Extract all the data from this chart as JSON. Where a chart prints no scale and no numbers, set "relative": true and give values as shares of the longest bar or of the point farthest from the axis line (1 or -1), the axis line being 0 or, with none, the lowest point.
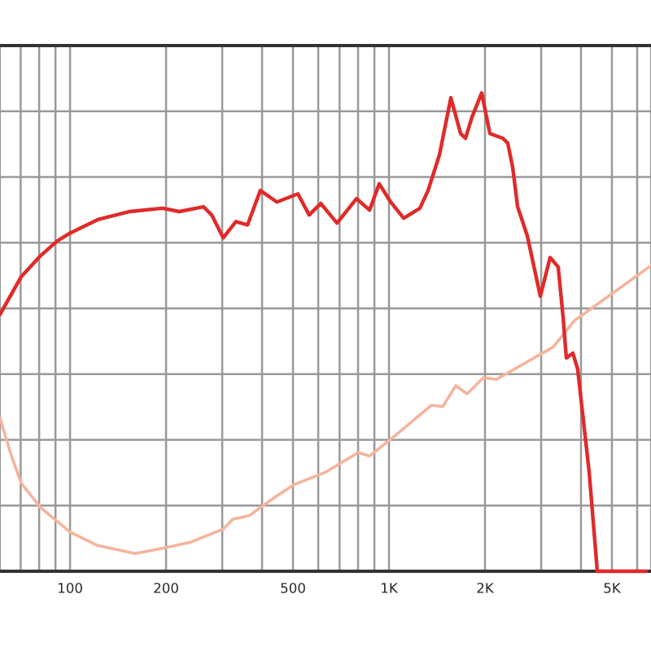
{
  "chart_data": {
    "type": "line",
    "relative": true,
    "log": "x",
    "grid": true,
    "tick_labels": "x",
    "marker": "none",
    "line_style": "solid",
    "legend": false,
    "xlim": [
      60.3,
      6630
    ],
    "xticks": [
      {
        "value": 70,
        "label": null
      },
      {
        "value": 80,
        "label": null
      },
      {
        "value": 90,
        "label": null
      },
      100,
      200,
      {
        "value": 300,
        "label": null
      },
      {
        "value": 400,
        "label": null
      },
      500,
      {
        "value": 600,
        "label": null
      },
      {
        "value": 700,
        "label": null
      },
      {
        "value": 800,
        "label": null
      },
      {
        "value": 900,
        "label": null
      },
      {
        "value": 1000,
        "label": "1K"
      },
      {
        "value": 2000,
        "label": "2K"
      },
      {
        "value": 3000,
        "label": null
      },
      {
        "value": 4000,
        "label": null
      },
      {
        "value": 5000,
        "label": "5K"
      },
      {
        "value": 6000,
        "label": null
      }
    ],
    "series": [
      {
        "color": "#f5b49c",
        "x": [
          60.3,
          65.5,
          70.3,
          80.9,
          100,
          122,
          160,
          195,
          239,
          302,
          324,
          364,
          429,
          500,
          632,
          800,
          869,
          1012,
          1358,
          1474,
          1619,
          1758,
          1977,
          2172,
          3275,
          3816,
          6630
        ],
        "values": [
          0.32,
          0.241,
          0.184,
          0.133,
          0.082,
          0.054,
          0.037,
          0.048,
          0.061,
          0.088,
          0.109,
          0.116,
          0.15,
          0.18,
          0.207,
          0.248,
          0.241,
          0.276,
          0.347,
          0.344,
          0.388,
          0.371,
          0.405,
          0.401,
          0.469,
          0.524,
          0.639
        ]
      },
      {
        "color": "#e02a2a",
        "x": [
          60.3,
          70.3,
          80.9,
          91.0,
          100,
          122,
          154,
          195,
          220,
          262,
          278,
          302,
          331,
          360,
          395,
          445,
          518,
          562,
          611,
          687,
          791,
          869,
          932,
          1012,
          1112,
          1250,
          1326,
          1440,
          1563,
          1677,
          1737,
          1820,
          1953,
          2072,
          2276,
          2357,
          2443,
          2531,
          2715,
          2982,
          3200,
          3393,
          3515,
          3598,
          3772,
          3906,
          4243,
          4499,
          6400
        ],
        "values": [
          0.537,
          0.616,
          0.66,
          0.69,
          0.707,
          0.735,
          0.752,
          0.759,
          0.752,
          0.762,
          0.745,
          0.697,
          0.731,
          0.724,
          0.796,
          0.772,
          0.789,
          0.745,
          0.769,
          0.728,
          0.779,
          0.755,
          0.81,
          0.772,
          0.738,
          0.759,
          0.796,
          0.871,
          0.99,
          0.915,
          0.905,
          0.949,
          1,
          0.915,
          0.905,
          0.895,
          0.844,
          0.762,
          0.701,
          0.575,
          0.656,
          0.636,
          0.531,
          0.446,
          0.456,
          0.422,
          0.207,
          0,
          0
        ]
      }
    ]
  }
}
